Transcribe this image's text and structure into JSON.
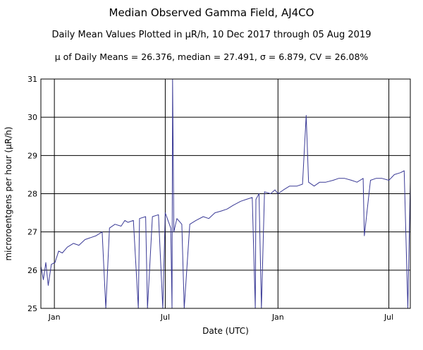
{
  "chart_data": {
    "type": "line",
    "title": "Median Observed Gamma Field, AJ4CO",
    "subtitle": "Daily Mean Values Plotted in μR/h, 10 Dec 2017 through 05 Aug 2019",
    "stats": "μ of Daily Means = 26.376,   median = 27.491,   σ = 6.879,   CV = 26.08%",
    "xlabel": "Date (UTC)",
    "ylabel": "microroentgens per hour (μR/h)",
    "xlim": [
      "2017-12-10",
      "2019-08-05"
    ],
    "ylim": [
      25,
      31
    ],
    "yticks": [
      25,
      26,
      27,
      28,
      29,
      30,
      31
    ],
    "xticks": [
      {
        "date": "2018-01-01",
        "label": "Jan"
      },
      {
        "date": "2018-07-01",
        "label": "Jul"
      },
      {
        "date": "2019-01-01",
        "label": "Jan"
      },
      {
        "date": "2019-07-01",
        "label": "Jul"
      }
    ],
    "grid": true,
    "series_color": "#3a3a96",
    "dates": [
      "2017-12-10",
      "2017-12-14",
      "2017-12-18",
      "2017-12-22",
      "2017-12-27",
      "2018-01-02",
      "2018-01-08",
      "2018-01-14",
      "2018-01-22",
      "2018-02-01",
      "2018-02-10",
      "2018-02-20",
      "2018-03-01",
      "2018-03-10",
      "2018-03-20",
      "2018-03-26",
      "2018-04-01",
      "2018-04-10",
      "2018-04-20",
      "2018-04-26",
      "2018-05-01",
      "2018-05-10",
      "2018-05-18",
      "2018-05-20",
      "2018-05-30",
      "2018-06-02",
      "2018-06-10",
      "2018-06-20",
      "2018-06-27",
      "2018-07-01",
      "2018-07-10",
      "2018-07-12",
      "2018-07-13",
      "2018-07-15",
      "2018-07-20",
      "2018-07-28",
      "2018-08-01",
      "2018-08-10",
      "2018-08-20",
      "2018-09-01",
      "2018-09-10",
      "2018-09-20",
      "2018-10-01",
      "2018-10-10",
      "2018-10-20",
      "2018-11-01",
      "2018-11-10",
      "2018-11-20",
      "2018-11-25",
      "2018-11-26",
      "2018-12-01",
      "2018-12-05",
      "2018-12-10",
      "2018-12-20",
      "2018-12-27",
      "2019-01-01",
      "2019-01-10",
      "2019-01-20",
      "2019-02-01",
      "2019-02-10",
      "2019-02-16",
      "2019-02-20",
      "2019-03-01",
      "2019-03-10",
      "2019-03-20",
      "2019-04-01",
      "2019-04-10",
      "2019-04-20",
      "2019-05-01",
      "2019-05-10",
      "2019-05-20",
      "2019-05-22",
      "2019-06-01",
      "2019-06-10",
      "2019-06-20",
      "2019-07-01",
      "2019-07-10",
      "2019-07-20",
      "2019-07-26",
      "2019-08-01",
      "2019-08-05"
    ],
    "values": [
      26.1,
      25.75,
      26.2,
      25.6,
      26.15,
      26.2,
      26.5,
      26.45,
      26.6,
      26.7,
      26.65,
      26.8,
      26.85,
      26.9,
      27.0,
      25.0,
      27.1,
      27.2,
      27.15,
      27.3,
      27.25,
      27.3,
      25.0,
      27.35,
      27.4,
      25.0,
      27.4,
      27.45,
      25.0,
      27.5,
      27.1,
      25.0,
      31.0,
      27.0,
      27.35,
      27.2,
      25.0,
      27.2,
      27.3,
      27.4,
      27.35,
      27.5,
      27.55,
      27.6,
      27.7,
      27.8,
      27.85,
      27.9,
      25.0,
      27.85,
      28.0,
      25.0,
      28.05,
      28.0,
      28.1,
      28.0,
      28.1,
      28.2,
      28.2,
      28.25,
      30.05,
      28.3,
      28.2,
      28.3,
      28.3,
      28.35,
      28.4,
      28.4,
      28.35,
      28.3,
      28.4,
      26.9,
      28.35,
      28.4,
      28.4,
      28.35,
      28.5,
      28.55,
      28.6,
      25.0,
      28.3
    ]
  }
}
